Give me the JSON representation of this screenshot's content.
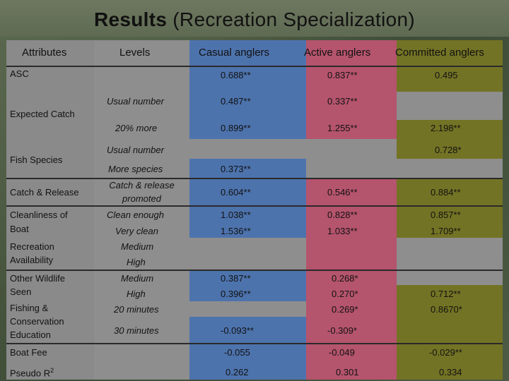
{
  "title": {
    "bold": "Results",
    "rest": " (Recreation Specialization)"
  },
  "headers": {
    "attributes": "Attributes",
    "levels": "Levels",
    "casual": "Casual anglers",
    "active": "Active anglers",
    "committed": "Committed anglers"
  },
  "rows": {
    "asc": {
      "attr": "ASC",
      "casual": "0.688**",
      "active": "0.837**",
      "committed": "0.495"
    },
    "expected_catch": {
      "attr": "Expected Catch",
      "lvl1": "Usual number",
      "cas1": "0.487**",
      "act1": "0.337**",
      "lvl2": "20% more",
      "cas2": "0.899**",
      "act2": "1.255**",
      "com2": "2.198**"
    },
    "fish_species": {
      "attr": "Fish Species",
      "lvl1": "Usual number",
      "com1": "0.728*",
      "lvl2": "More species",
      "cas2": "0.373**"
    },
    "catch_release": {
      "attr": "Catch & Release",
      "lvl_a": "Catch & release",
      "lvl_b": "promoted",
      "casual": "0.604**",
      "active": "0.546**",
      "committed": "0.884**"
    },
    "cleanliness": {
      "attr_a": "Cleanliness of",
      "attr_b": "Boat",
      "lvl1": "Clean enough",
      "cas1": "1.038**",
      "act1": "0.828**",
      "com1": "0.857**",
      "lvl2": "Very clean",
      "cas2": "1.536**",
      "act2": "1.033**",
      "com2": "1.709**"
    },
    "recreation": {
      "attr_a": "Recreation",
      "attr_b": "Availability",
      "lvl1": "Medium",
      "lvl2": "High"
    },
    "wildlife": {
      "attr_a": "Other Wildlife",
      "attr_b": "Seen",
      "lvl1": "Medium",
      "cas1": "0.387**",
      "act1": "0.268*",
      "lvl2": "High",
      "cas2": "0.396**",
      "act2": "0.270*",
      "com2": "0.712**"
    },
    "fishing_ed": {
      "attr_a": "Fishing &",
      "attr_b": "Conservation",
      "attr_c": "Education",
      "lvl1": "20 minutes",
      "act1": "0.269*",
      "com1": "0.8670*",
      "lvl2": "30 minutes",
      "cas2": "-0.093**",
      "act2": "-0.309*"
    },
    "boat_fee": {
      "attr": "Boat Fee",
      "casual": "-0.055",
      "active": "-0.049",
      "committed": "-0.029**"
    },
    "pseudo": {
      "attr": "Pseudo R",
      "sup": "2",
      "casual": "0.262",
      "active": "0.301",
      "committed": "0.334"
    }
  }
}
